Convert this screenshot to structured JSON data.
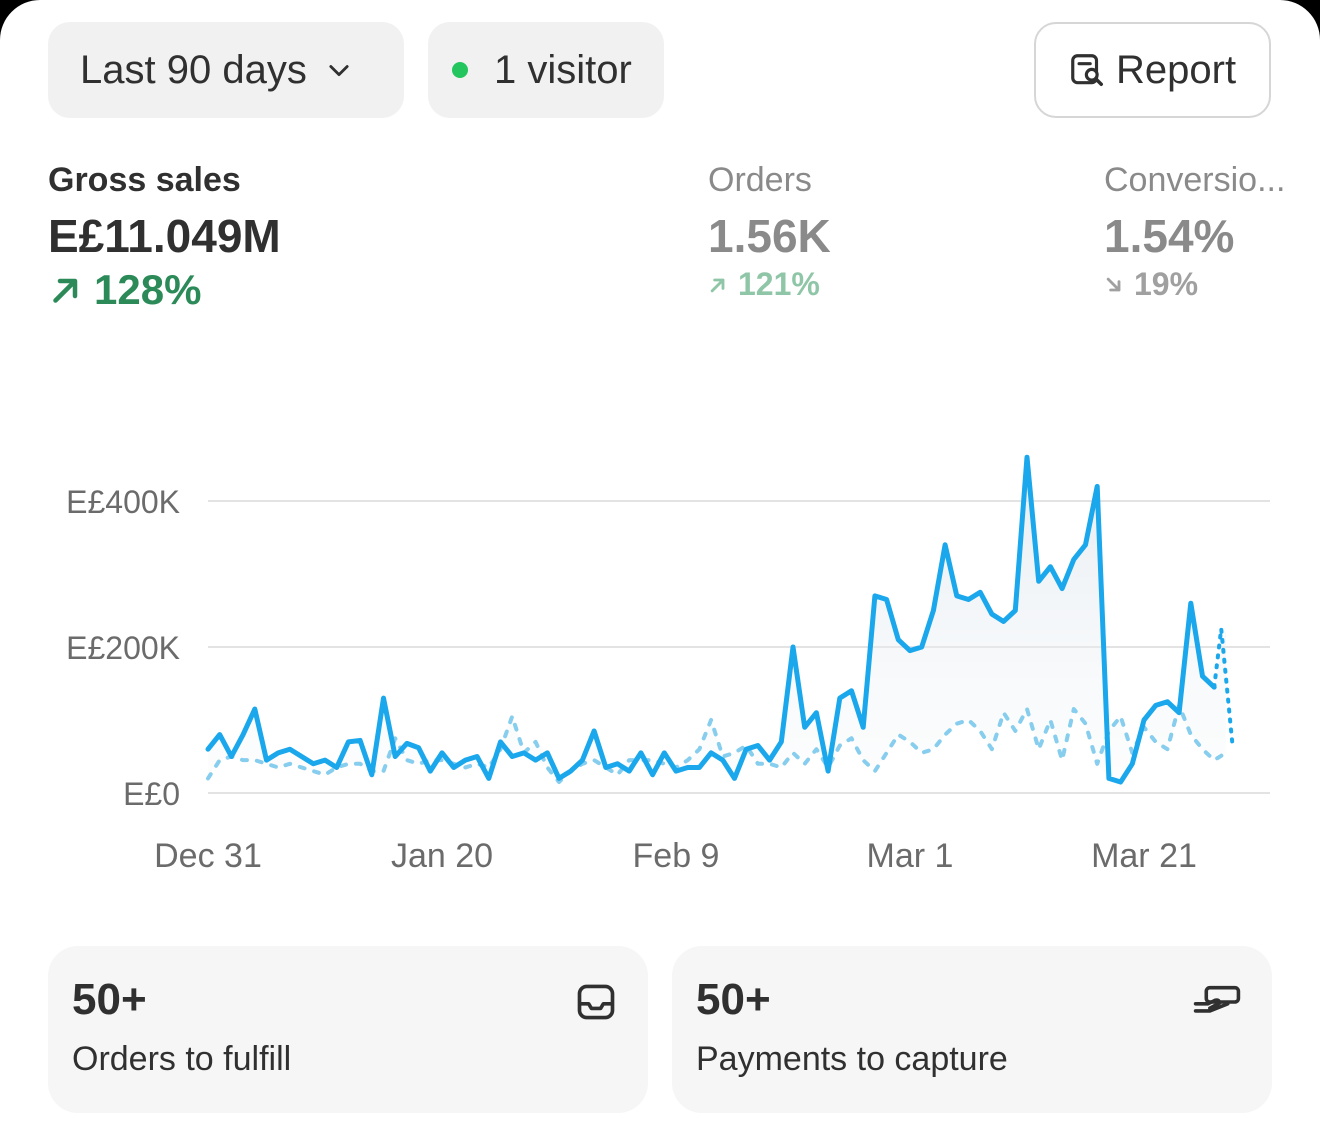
{
  "toolbar": {
    "range_label": "Last 90 days",
    "visitor_label": "1 visitor",
    "report_label": "Report"
  },
  "metrics": [
    {
      "label": "Gross sales",
      "value": "E£11.049M",
      "delta": "128%",
      "direction": "up"
    },
    {
      "label": "Orders",
      "value": "1.56K",
      "delta": "121%",
      "direction": "up"
    },
    {
      "label": "Conversio...",
      "value": "1.54%",
      "delta": "19%",
      "direction": "down"
    }
  ],
  "chart_data": {
    "type": "line",
    "y_tick_labels": [
      "E£0",
      "E£200K",
      "E£400K"
    ],
    "y_tick_values": [
      0,
      200000,
      400000
    ],
    "x_tick_labels": [
      "Dec 31",
      "Jan 20",
      "Feb 9",
      "Mar 1",
      "Mar 21"
    ],
    "x_tick_days": [
      0,
      20,
      40,
      60,
      80
    ],
    "ylim": [
      0,
      480000
    ],
    "xlim": [
      0,
      90
    ],
    "grid": true,
    "colors": {
      "current": "#1aa7ec",
      "previous": "#86cdee",
      "grid": "#e3e3e3"
    },
    "series": [
      {
        "style": "solid",
        "values": [
          60000,
          80000,
          50000,
          80000,
          115000,
          45000,
          55000,
          60000,
          50000,
          40000,
          45000,
          35000,
          70000,
          72000,
          25000,
          130000,
          50000,
          68000,
          62000,
          30000,
          55000,
          35000,
          45000,
          50000,
          20000,
          70000,
          50000,
          55000,
          45000,
          55000,
          20000,
          30000,
          45000,
          85000,
          35000,
          40000,
          30000,
          55000,
          25000,
          55000,
          30000,
          35000,
          35000,
          55000,
          45000,
          20000,
          60000,
          65000,
          45000,
          70000,
          200000,
          90000,
          110000,
          30000,
          130000,
          140000,
          90000,
          270000,
          265000,
          210000,
          195000,
          200000,
          250000,
          340000,
          270000,
          265000,
          275000,
          245000,
          235000,
          250000,
          460000,
          290000,
          310000,
          280000,
          320000,
          340000,
          420000,
          20000,
          15000,
          40000,
          100000,
          120000,
          125000,
          110000,
          260000,
          160000,
          145000,
          225000
        ]
      },
      {
        "style": "dotted",
        "values": [
          20000,
          45000,
          50000,
          45000,
          45000,
          40000,
          35000,
          40000,
          35000,
          30000,
          25000,
          35000,
          40000,
          40000,
          30000,
          30000,
          75000,
          45000,
          40000,
          45000,
          45000,
          40000,
          35000,
          40000,
          35000,
          60000,
          105000,
          55000,
          70000,
          35000,
          15000,
          30000,
          40000,
          45000,
          35000,
          25000,
          45000,
          45000,
          45000,
          40000,
          35000,
          45000,
          60000,
          100000,
          50000,
          55000,
          65000,
          40000,
          40000,
          35000,
          55000,
          40000,
          60000,
          35000,
          65000,
          75000,
          45000,
          30000,
          55000,
          80000,
          70000,
          55000,
          60000,
          80000,
          95000,
          100000,
          85000,
          60000,
          110000,
          85000,
          115000,
          60000,
          100000,
          45000,
          115000,
          95000,
          40000,
          85000,
          105000,
          55000,
          90000,
          70000,
          60000,
          120000,
          80000,
          60000,
          45000,
          55000
        ]
      }
    ]
  },
  "tiles": [
    {
      "count": "50+",
      "label": "Orders to fulfill",
      "icon": "inbox-icon"
    },
    {
      "count": "50+",
      "label": "Payments to capture",
      "icon": "hand-cash-icon"
    }
  ]
}
